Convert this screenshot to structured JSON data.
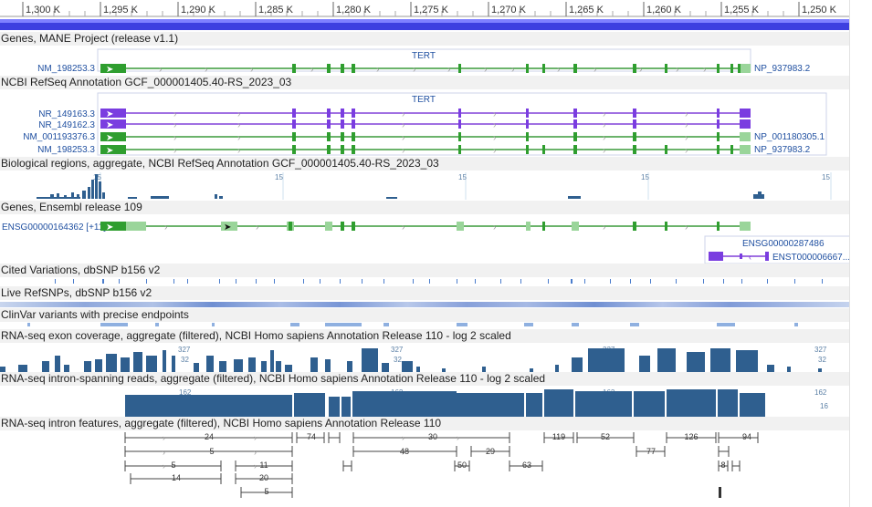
{
  "ruler": {
    "ticks": [
      "1,300 K",
      "1,295 K",
      "1,290 K",
      "1,285 K",
      "1,280 K",
      "1,275 K",
      "1,270 K",
      "1,265 K",
      "1,260 K",
      "1,255 K",
      "1,250 K"
    ]
  },
  "tracks": {
    "mane": {
      "title": "Genes, MANE Project (release v1.1)",
      "gene": "TERT",
      "transcript_left": "NM_198253.3",
      "protein_right": "NP_937983.2"
    },
    "refseq": {
      "title": "NCBI RefSeq Annotation GCF_000001405.40-RS_2023_03",
      "gene": "TERT",
      "rows": [
        {
          "left": "NR_149163.3",
          "right": ""
        },
        {
          "left": "NR_149162.3",
          "right": ""
        },
        {
          "left": "NM_001193376.3",
          "right": "NP_001180305.1"
        },
        {
          "left": "NM_198253.3",
          "right": "NP_937983.2"
        }
      ]
    },
    "bioregions": {
      "title": "Biological regions, aggregate, NCBI RefSeq Annotation GCF_000001405.40-RS_2023_03",
      "scale": [
        "15",
        "15",
        "15",
        "15",
        "15"
      ]
    },
    "ensembl": {
      "title": "Genes, Ensembl release 109",
      "transcript_left": "ENSG00000164362 [+11]",
      "gene2": "ENSG00000287486",
      "transcript2": "ENST000006667..."
    },
    "cited": {
      "title": "Cited Variations, dbSNP b156 v2"
    },
    "live": {
      "title": "Live RefSNPs, dbSNP b156 v2"
    },
    "clinvar": {
      "title": "ClinVar variants with precise endpoints"
    },
    "exoncov": {
      "title": "RNA-seq exon coverage, aggregate (filtered), NCBI Homo sapiens Annotation Release 110 - log 2 scaled",
      "scale_top": [
        "327",
        "327",
        "327",
        "327",
        "327"
      ],
      "scale_mid": [
        "32",
        "32",
        "32",
        "32",
        "32"
      ]
    },
    "intronspan": {
      "title": "RNA-seq intron-spanning reads, aggregate (filtered), NCBI Homo sapiens Annotation Release 110 - log 2 scaled",
      "scale_top": [
        "162",
        "162",
        "162",
        "162",
        "162"
      ],
      "scale_mid": [
        "16",
        "16",
        "16",
        "16",
        "16"
      ]
    },
    "intronfeat": {
      "title": "RNA-seq intron features, aggregate (filtered), NCBI Homo sapiens Annotation Release 110",
      "features": [
        "24",
        "74",
        "30",
        "119",
        "52",
        "126",
        "94",
        "5",
        "48",
        "29",
        "77",
        "5",
        "11",
        "50",
        "63",
        "8",
        "14",
        "20",
        "5"
      ]
    }
  },
  "colors": {
    "refseq_gene": "#3a9a3a",
    "noncoding": "#8040d8",
    "coverage": "#2f5f8f",
    "label": "#1f4fa0"
  }
}
